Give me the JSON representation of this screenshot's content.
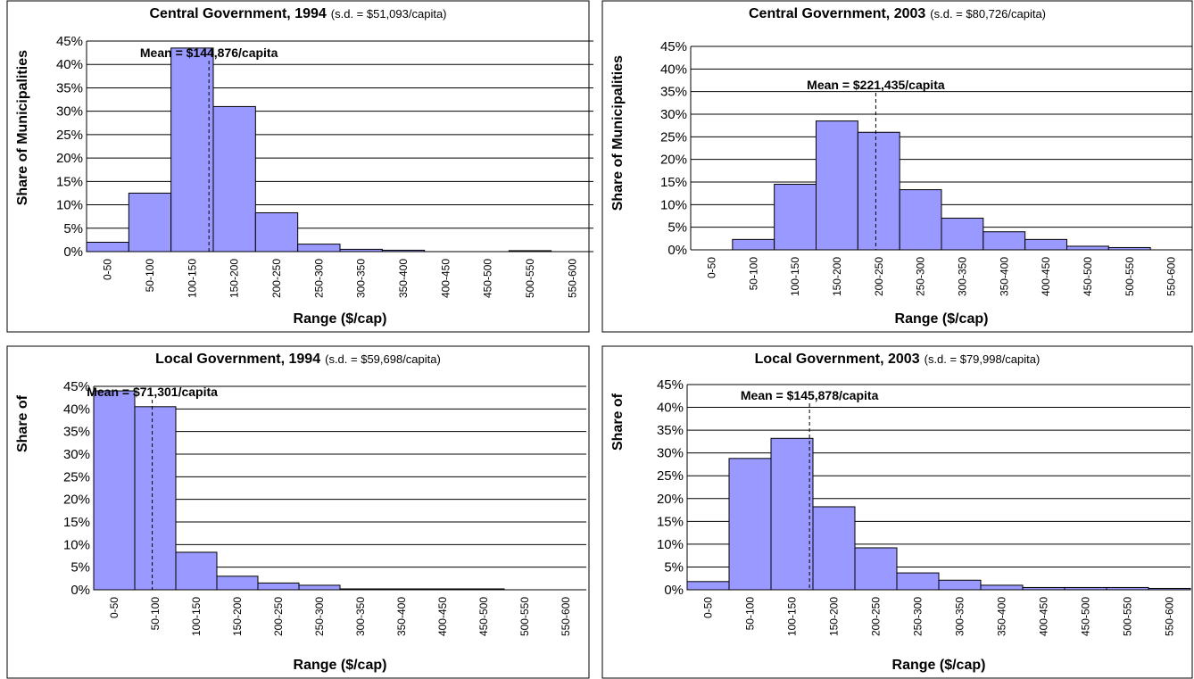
{
  "chart_data": [
    {
      "type": "bar",
      "title": "Central Government, 1994",
      "subtitle": "(s.d. = $51,093/capita)",
      "xlabel": "Range ($/cap)",
      "ylabel": "Share of Municipalities",
      "categories": [
        "0-50",
        "50-100",
        "100-150",
        "150-200",
        "200-250",
        "250-300",
        "300-350",
        "350-400",
        "400-450",
        "450-500",
        "500-550",
        "550-600"
      ],
      "values": [
        2,
        12.5,
        43.5,
        31,
        8.3,
        1.6,
        0.5,
        0.3,
        0,
        0,
        0.2,
        0
      ],
      "color": "#9999ff",
      "xlim": [
        0,
        600
      ],
      "ylim": [
        0,
        45
      ],
      "yticks": [
        {
          "value": 0,
          "label": "0%"
        },
        {
          "value": 5,
          "label": "5%"
        },
        {
          "value": 10,
          "label": "10%"
        },
        {
          "value": 15,
          "label": "15%"
        },
        {
          "value": 20,
          "label": "20%"
        },
        {
          "value": 25,
          "label": "25%"
        },
        {
          "value": 30,
          "label": "30%"
        },
        {
          "value": 35,
          "label": "35%"
        },
        {
          "value": 40,
          "label": "40%"
        },
        {
          "value": 45,
          "label": "45%"
        }
      ],
      "grid": true,
      "annotations": [
        {
          "text": "Mean = $144,876/capita",
          "x": 144.876
        }
      ]
    },
    {
      "type": "bar",
      "title": "Central Government, 2003",
      "subtitle": "(s.d. = $80,726/capita)",
      "xlabel": "Range ($/cap)",
      "ylabel": "Share of Municipalities",
      "categories": [
        "0-50",
        "50-100",
        "100-150",
        "150-200",
        "200-250",
        "250-300",
        "300-350",
        "350-400",
        "400-450",
        "450-500",
        "500-550",
        "550-600"
      ],
      "values": [
        0,
        2.3,
        14.5,
        28.5,
        26,
        13.3,
        7,
        4,
        2.3,
        0.8,
        0.5,
        0
      ],
      "color": "#9999ff",
      "xlim": [
        0,
        600
      ],
      "ylim": [
        0,
        45
      ],
      "yticks": [
        {
          "value": 0,
          "label": "0%"
        },
        {
          "value": 5,
          "label": "5%"
        },
        {
          "value": 10,
          "label": "10%"
        },
        {
          "value": 15,
          "label": "15%"
        },
        {
          "value": 20,
          "label": "20%"
        },
        {
          "value": 25,
          "label": "25%"
        },
        {
          "value": 30,
          "label": "30%"
        },
        {
          "value": 35,
          "label": "35%"
        },
        {
          "value": 40,
          "label": "40%"
        },
        {
          "value": 45,
          "label": "45%"
        }
      ],
      "grid": true,
      "annotations": [
        {
          "text": "Mean = $221,435/capita",
          "x": 221.435
        }
      ]
    },
    {
      "type": "bar",
      "title": "Local Government, 1994",
      "subtitle": "(s.d. = $59,698/capita)",
      "xlabel": "Range ($/cap)",
      "ylabel": "Share of",
      "categories": [
        "0-50",
        "50-100",
        "100-150",
        "150-200",
        "200-250",
        "250-300",
        "300-350",
        "350-400",
        "400-450",
        "450-500",
        "500-550",
        "550-600"
      ],
      "values": [
        44,
        40.5,
        8.3,
        3,
        1.5,
        1,
        0.2,
        0.2,
        0.2,
        0.2,
        0,
        0
      ],
      "color": "#9999ff",
      "xlim": [
        0,
        600
      ],
      "ylim": [
        0,
        45
      ],
      "yticks": [
        {
          "value": 0,
          "label": "0%"
        },
        {
          "value": 5,
          "label": "5%"
        },
        {
          "value": 10,
          "label": "10%"
        },
        {
          "value": 15,
          "label": "15%"
        },
        {
          "value": 20,
          "label": "20%"
        },
        {
          "value": 25,
          "label": "25%"
        },
        {
          "value": 30,
          "label": "30%"
        },
        {
          "value": 35,
          "label": "35%"
        },
        {
          "value": 40,
          "label": "40%"
        },
        {
          "value": 45,
          "label": "45%"
        }
      ],
      "grid": true,
      "annotations": [
        {
          "text": "Mean = $71,301/capita",
          "x": 71.301
        }
      ]
    },
    {
      "type": "bar",
      "title": "Local Government, 2003",
      "subtitle": "(s.d. = $79,998/capita)",
      "xlabel": "Range ($/cap)",
      "ylabel": "Share of",
      "categories": [
        "0-50",
        "50-100",
        "100-150",
        "150-200",
        "200-250",
        "250-300",
        "300-350",
        "350-400",
        "400-450",
        "450-500",
        "500-550",
        "550-600"
      ],
      "values": [
        1.8,
        28.8,
        33.2,
        18.2,
        9.2,
        3.7,
        2.1,
        1,
        0.5,
        0.5,
        0.5,
        0.3
      ],
      "color": "#9999ff",
      "xlim": [
        0,
        600
      ],
      "ylim": [
        0,
        45
      ],
      "yticks": [
        {
          "value": 0,
          "label": "0%"
        },
        {
          "value": 5,
          "label": "5%"
        },
        {
          "value": 10,
          "label": "10%"
        },
        {
          "value": 15,
          "label": "15%"
        },
        {
          "value": 20,
          "label": "20%"
        },
        {
          "value": 25,
          "label": "25%"
        },
        {
          "value": 30,
          "label": "30%"
        },
        {
          "value": 35,
          "label": "35%"
        },
        {
          "value": 40,
          "label": "40%"
        },
        {
          "value": 45,
          "label": "45%"
        }
      ],
      "grid": true,
      "annotations": [
        {
          "text": "Mean = $145,878/capita",
          "x": 145.878
        }
      ]
    }
  ]
}
